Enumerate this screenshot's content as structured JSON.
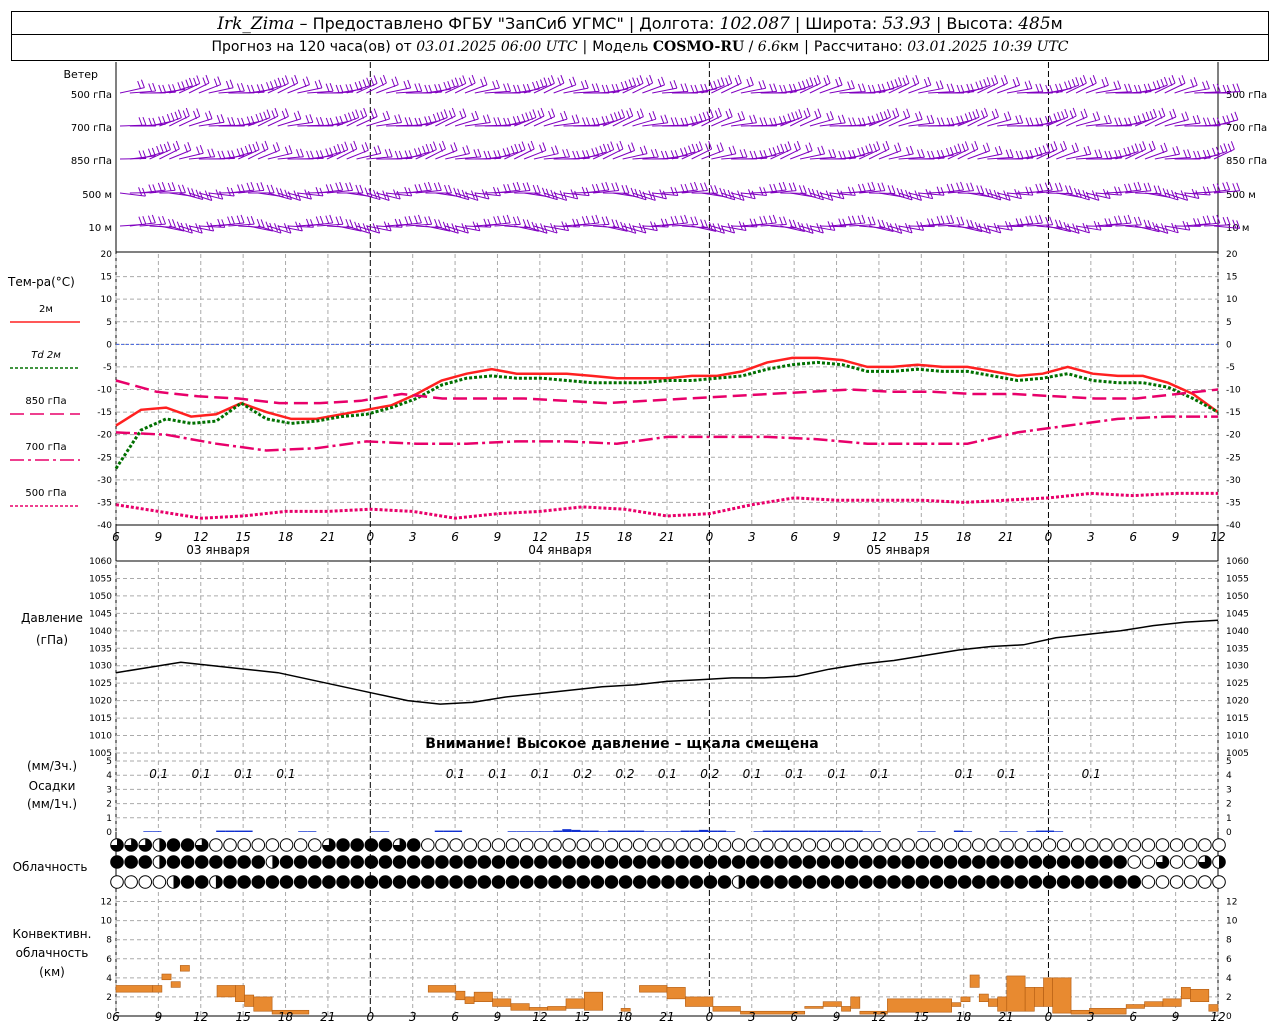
{
  "header": {
    "station": "Irk_Zima",
    "dash": " – ",
    "provider": "Предоставлено ФГБУ \"ЗапСиб УГМС\"",
    "lon_label": "Долгота:",
    "lon_value": "102.087",
    "lat_label": "Широта:",
    "lat_value": "53.93",
    "alt_label": "Высота:",
    "alt_value": "485",
    "alt_unit": "м",
    "forecast_prefix": "Прогноз на 120 часа(ов) от",
    "forecast_time": "03.01.2025 06:00 UTC",
    "model_label": "Модель",
    "model_name": "COSMO-RU",
    "model_res": "6.6",
    "model_res_unit": "км",
    "computed_label": "Рассчитано:",
    "computed_time": "03.01.2025 10:39 UTC"
  },
  "chart_data": {
    "type": "meteogram",
    "x_hours": [
      6,
      9,
      12,
      15,
      18,
      21,
      0,
      3,
      6,
      9,
      12,
      15,
      18,
      21,
      0,
      3,
      6,
      9,
      12,
      15,
      18,
      21,
      0,
      3,
      6,
      9,
      12
    ],
    "day_labels": [
      "03 января",
      "04 января",
      "05 января"
    ],
    "wind": {
      "label": "Ветер",
      "levels": [
        "500 гПа",
        "700 гПа",
        "850 гПа",
        "500 м",
        "10  м"
      ],
      "color": "#8000c0"
    },
    "temperature": {
      "label": "Тем-ра(°C)",
      "ylim": [
        -40,
        20
      ],
      "yticks": [
        20,
        15,
        10,
        5,
        0,
        -5,
        -10,
        -15,
        -20,
        -25,
        -30,
        -35,
        -40
      ],
      "series": [
        {
          "name": "2м",
          "color": "#ff2020",
          "style": "solid",
          "values": [
            -18,
            -14.5,
            -14,
            -16,
            -15.5,
            -13,
            -15,
            -16.5,
            -16.5,
            -15.5,
            -14.5,
            -13.5,
            -11,
            -8,
            -6.5,
            -5.5,
            -6.5,
            -6.5,
            -6.5,
            -7,
            -7.5,
            -7.5,
            -7.5,
            -7,
            -7,
            -6,
            -4,
            -3,
            -3,
            -3.5,
            -5,
            -5,
            -4.5,
            -5,
            -5,
            -6,
            -7,
            -6.5,
            -5,
            -6.5,
            -7,
            -7,
            -8.5,
            -11,
            -15
          ]
        },
        {
          "name": "Td  2м",
          "color": "#007000",
          "style": "dotted",
          "values": [
            -27.5,
            -19,
            -16.5,
            -17.5,
            -17,
            -13,
            -16.5,
            -17.5,
            -17,
            -16,
            -15.5,
            -14,
            -12,
            -9,
            -7.5,
            -7,
            -7.5,
            -7.5,
            -8,
            -8.5,
            -8.5,
            -8.5,
            -8,
            -8,
            -7.5,
            -7,
            -5.5,
            -4.5,
            -4,
            -4.5,
            -6,
            -6,
            -5.5,
            -6,
            -6,
            -7,
            -8,
            -7.5,
            -6.5,
            -8,
            -8.5,
            -8.5,
            -9.5,
            -12,
            -15
          ]
        },
        {
          "name": "850 гПа",
          "color": "#e8006a",
          "style": "dash",
          "values": [
            -8,
            -10.5,
            -11.5,
            -12,
            -13,
            -13,
            -12.5,
            -11,
            -12,
            -12,
            -12,
            -12.5,
            -13,
            -12.5,
            -12,
            -11.5,
            -11,
            -10.5,
            -10,
            -10.5,
            -10.5,
            -11,
            -11,
            -11.5,
            -12,
            -12,
            -11,
            -10
          ]
        },
        {
          "name": "700 гПа",
          "color": "#e8006a",
          "style": "dashdot",
          "values": [
            -19.5,
            -20,
            -22,
            -23.5,
            -23,
            -21.5,
            -22,
            -22,
            -21.5,
            -21.5,
            -22,
            -20.5,
            -20.5,
            -20.5,
            -21,
            -22,
            -22,
            -22,
            -19.5,
            -18,
            -16.5,
            -16,
            -16
          ]
        },
        {
          "name": "500 гПа",
          "color": "#e8006a",
          "style": "dotted",
          "values": [
            -35.5,
            -37,
            -38.5,
            -38,
            -37,
            -37,
            -36.5,
            -37,
            -38.5,
            -37.5,
            -37,
            -36,
            -36.5,
            -38,
            -37.5,
            -35.5,
            -34,
            -34.5,
            -34.5,
            -34.5,
            -35,
            -34.5,
            -34,
            -33,
            -33.5,
            -33,
            -33
          ]
        }
      ]
    },
    "pressure": {
      "label": "Давление",
      "unit": "(гПа)",
      "ylim": [
        1005,
        1060
      ],
      "yticks": [
        1060,
        1055,
        1050,
        1045,
        1040,
        1035,
        1030,
        1025,
        1020,
        1015,
        1010,
        1005
      ],
      "warning": "Внимание! Высокое давление – щкала смещена",
      "values": [
        1028,
        1029.5,
        1031,
        1030,
        1029,
        1028,
        1026,
        1024,
        1022,
        1020,
        1019,
        1019.5,
        1021,
        1022,
        1023,
        1024,
        1024.5,
        1025.5,
        1026,
        1026.5,
        1026.5,
        1027,
        1029,
        1030.5,
        1031.5,
        1033,
        1034.5,
        1035.5,
        1036,
        1038,
        1039,
        1040,
        1041.5,
        1042.5,
        1043
      ]
    },
    "precipitation": {
      "label": "Осадки",
      "unit_top": "(мм/3ч.)",
      "unit_bottom": "(мм/1ч.)",
      "ylim": [
        0,
        5
      ],
      "yticks": [
        5,
        4,
        3,
        2,
        1,
        0
      ],
      "totals": [
        {
          "hour_index": 2,
          "value": "0.1"
        },
        {
          "hour_index": 3,
          "value": "0.1"
        },
        {
          "hour_index": 4,
          "value": "0.1"
        },
        {
          "hour_index": 5,
          "value": "0.1"
        },
        {
          "hour_index": 9,
          "value": "0.1"
        },
        {
          "hour_index": 10,
          "value": "0.1"
        },
        {
          "hour_index": 11,
          "value": "0.1"
        },
        {
          "hour_index": 12,
          "value": "0.2"
        },
        {
          "hour_index": 13,
          "value": "0.2"
        },
        {
          "hour_index": 14,
          "value": "0.1"
        },
        {
          "hour_index": 15,
          "value": "0.2"
        },
        {
          "hour_index": 16,
          "value": "0.1"
        },
        {
          "hour_index": 17,
          "value": "0.1"
        },
        {
          "hour_index": 18,
          "value": "0.1"
        },
        {
          "hour_index": 19,
          "value": "0.1"
        },
        {
          "hour_index": 21,
          "value": "0.1"
        },
        {
          "hour_index": 22,
          "value": "0.1"
        },
        {
          "hour_index": 24,
          "value": "0.1"
        }
      ],
      "hourly": [
        0,
        0,
        0,
        0.05,
        0.05,
        0,
        0,
        0,
        0,
        0,
        0,
        0.1,
        0.1,
        0.1,
        0.1,
        0,
        0,
        0,
        0,
        0,
        0.05,
        0.05,
        0,
        0,
        0,
        0,
        0,
        0,
        0.05,
        0.05,
        0,
        0,
        0,
        0,
        0,
        0.1,
        0.1,
        0.1,
        0,
        0,
        0,
        0,
        0,
        0.05,
        0.05,
        0.05,
        0.05,
        0.05,
        0.1,
        0.2,
        0.15,
        0.1,
        0.1,
        0.05,
        0.1,
        0.1,
        0.1,
        0.1,
        0.05,
        0.05,
        0.05,
        0.05,
        0.1,
        0.1,
        0.15,
        0.1,
        0.1,
        0.05,
        0,
        0,
        0.05,
        0.1,
        0.1,
        0.1,
        0.1,
        0.1,
        0.1,
        0.1,
        0.1,
        0.1,
        0.1,
        0.1,
        0.05,
        0.05,
        0,
        0,
        0,
        0,
        0.05,
        0.05,
        0,
        0,
        0.1,
        0.05,
        0,
        0,
        0,
        0.05,
        0.05,
        0,
        0.05,
        0.1,
        0.1,
        0.05,
        0,
        0,
        0,
        0,
        0,
        0,
        0,
        0,
        0,
        0,
        0,
        0,
        0,
        0,
        0,
        0,
        0
      ],
      "color": "#1030d0"
    },
    "cloudiness": {
      "label": "Облачность",
      "rows": [
        [
          3,
          3,
          3,
          3,
          2,
          4,
          3,
          4,
          3,
          4,
          0,
          0,
          0,
          0,
          0,
          0,
          0,
          0,
          0,
          0,
          0,
          0,
          3,
          4,
          3,
          4,
          4,
          3,
          4,
          3,
          4,
          4,
          0,
          0,
          0,
          0,
          0,
          0,
          0,
          0,
          0,
          0,
          0,
          0,
          0,
          0,
          0,
          0,
          0,
          0,
          0,
          0,
          0,
          0,
          0,
          0,
          0,
          0,
          0,
          0,
          0,
          0,
          0,
          0,
          0,
          0,
          0,
          0,
          0,
          0,
          0,
          0,
          0,
          0,
          0,
          0,
          0,
          0,
          0,
          0,
          0,
          0,
          0,
          0,
          0,
          0,
          0,
          0,
          0,
          0,
          0,
          0,
          0,
          0,
          0,
          0,
          0,
          0,
          0,
          0,
          0,
          0,
          0,
          0,
          0,
          0,
          0,
          0,
          0,
          0,
          0,
          0,
          0,
          0,
          0,
          0,
          0,
          0
        ],
        [
          4,
          4,
          4,
          4,
          4,
          2,
          2,
          4,
          4,
          4,
          4,
          4,
          4,
          2,
          4,
          4,
          2,
          4,
          4,
          2,
          4,
          4,
          4,
          4,
          4,
          4,
          4,
          4,
          4,
          4,
          4,
          4,
          4,
          4,
          4,
          4,
          4,
          4,
          4,
          4,
          4,
          4,
          4,
          4,
          4,
          4,
          4,
          4,
          4,
          4,
          4,
          4,
          4,
          4,
          4,
          4,
          4,
          4,
          4,
          4,
          4,
          4,
          4,
          4,
          4,
          4,
          4,
          4,
          4,
          4,
          4,
          4,
          4,
          4,
          4,
          4,
          4,
          4,
          4,
          4,
          4,
          4,
          4,
          4,
          4,
          4,
          4,
          4,
          4,
          4,
          4,
          4,
          4,
          4,
          4,
          4,
          4,
          4,
          4,
          4,
          4,
          2,
          4,
          4,
          4,
          4,
          4,
          4,
          4,
          4,
          4,
          4,
          4,
          4,
          4,
          4,
          4,
          4,
          4,
          4,
          4,
          4,
          4,
          4,
          4,
          0,
          0,
          0,
          0,
          0,
          3,
          0,
          3,
          0,
          3,
          3,
          0,
          2,
          0
        ],
        [
          0,
          0,
          4,
          0,
          0,
          0,
          1,
          4,
          4,
          4,
          4,
          4,
          2,
          4,
          4,
          4,
          4,
          4,
          4,
          4,
          4,
          4,
          4,
          4,
          4,
          4,
          4,
          4,
          4,
          4,
          4,
          4,
          4,
          4,
          4,
          4,
          4,
          4,
          4,
          4,
          4,
          4,
          4,
          4,
          4,
          4,
          4,
          4,
          4,
          4,
          4,
          4,
          4,
          4,
          4,
          4,
          4,
          4,
          4,
          4,
          4,
          4,
          4,
          4,
          4,
          4,
          4,
          4,
          4,
          4,
          4,
          4,
          4,
          4,
          4,
          4,
          2,
          4,
          4,
          4,
          4,
          4,
          4,
          4,
          4,
          4,
          4,
          4,
          4,
          4,
          4,
          4,
          4,
          4,
          4,
          4,
          4,
          4,
          4,
          4,
          4,
          4,
          4,
          4,
          4,
          4,
          4,
          4,
          4,
          4,
          4,
          4,
          4,
          4,
          4,
          4,
          4,
          4,
          4,
          4,
          4,
          4,
          4,
          4,
          4,
          4,
          2,
          0,
          0,
          0,
          0,
          0,
          0,
          0,
          0,
          0,
          0,
          0
        ]
      ]
    },
    "convective": {
      "label_lines": [
        "Конвективн.",
        "облачность",
        "(км)"
      ],
      "ylim": [
        0,
        13
      ],
      "yticks": [
        12,
        10,
        8,
        6,
        4,
        2,
        0
      ],
      "bars": [
        [
          0,
          4,
          2.5,
          3.2
        ],
        [
          4,
          5,
          2.5,
          3.2
        ],
        [
          5,
          6,
          3.8,
          4.4
        ],
        [
          6,
          7,
          3,
          3.6
        ],
        [
          7,
          8,
          4.7,
          5.3
        ],
        [
          11,
          13,
          2,
          3.2
        ],
        [
          13,
          14,
          1.5,
          3.2
        ],
        [
          14,
          15,
          1,
          2.2
        ],
        [
          15,
          17,
          0.5,
          2
        ],
        [
          17,
          21,
          0.2,
          0.6
        ],
        [
          34,
          37,
          2.5,
          3.2
        ],
        [
          37,
          38,
          1.7,
          2.6
        ],
        [
          38,
          39,
          1.3,
          2
        ],
        [
          39,
          41,
          1.5,
          2.5
        ],
        [
          41,
          43,
          1,
          1.8
        ],
        [
          43,
          45,
          0.6,
          1.3
        ],
        [
          45,
          47,
          0.6,
          0.9
        ],
        [
          47,
          49,
          0.6,
          1
        ],
        [
          49,
          51,
          0.8,
          1.8
        ],
        [
          51,
          53,
          0.6,
          2.5
        ],
        [
          55,
          56,
          0.5,
          0.8
        ],
        [
          57,
          60,
          2.5,
          3.2
        ],
        [
          60,
          62,
          1.8,
          3
        ],
        [
          62,
          65,
          1,
          2
        ],
        [
          65,
          68,
          0.5,
          1
        ],
        [
          68,
          75,
          0.2,
          0.5
        ],
        [
          75,
          77,
          0.8,
          1
        ],
        [
          77,
          79,
          1,
          1.5
        ],
        [
          79,
          80,
          0.5,
          1
        ],
        [
          80,
          81,
          0.8,
          2
        ],
        [
          81,
          84,
          0.2,
          0.5
        ],
        [
          84,
          91,
          0.4,
          1.8
        ],
        [
          91,
          92,
          1,
          1.4
        ],
        [
          92,
          93,
          1.5,
          2
        ],
        [
          93,
          94,
          3,
          4.3
        ],
        [
          94,
          95,
          1.5,
          2.3
        ],
        [
          95,
          96,
          1,
          1.8
        ],
        [
          96,
          97,
          0.5,
          2
        ],
        [
          97,
          99,
          0.5,
          4.2
        ],
        [
          99,
          100,
          0.5,
          3
        ],
        [
          100,
          101,
          1,
          3
        ],
        [
          101,
          102,
          1,
          4
        ],
        [
          102,
          104,
          0.3,
          4
        ],
        [
          104,
          106,
          0.2,
          0.6
        ],
        [
          106,
          110,
          0.2,
          0.8
        ],
        [
          110,
          112,
          0.8,
          1.2
        ],
        [
          112,
          114,
          1,
          1.5
        ],
        [
          114,
          116,
          1,
          1.8
        ],
        [
          116,
          117,
          1.8,
          3
        ],
        [
          117,
          119,
          1.5,
          2.8
        ],
        [
          119,
          120,
          0.5,
          1.2
        ]
      ],
      "color": "#e88a30",
      "edge": "#b05a10"
    }
  }
}
